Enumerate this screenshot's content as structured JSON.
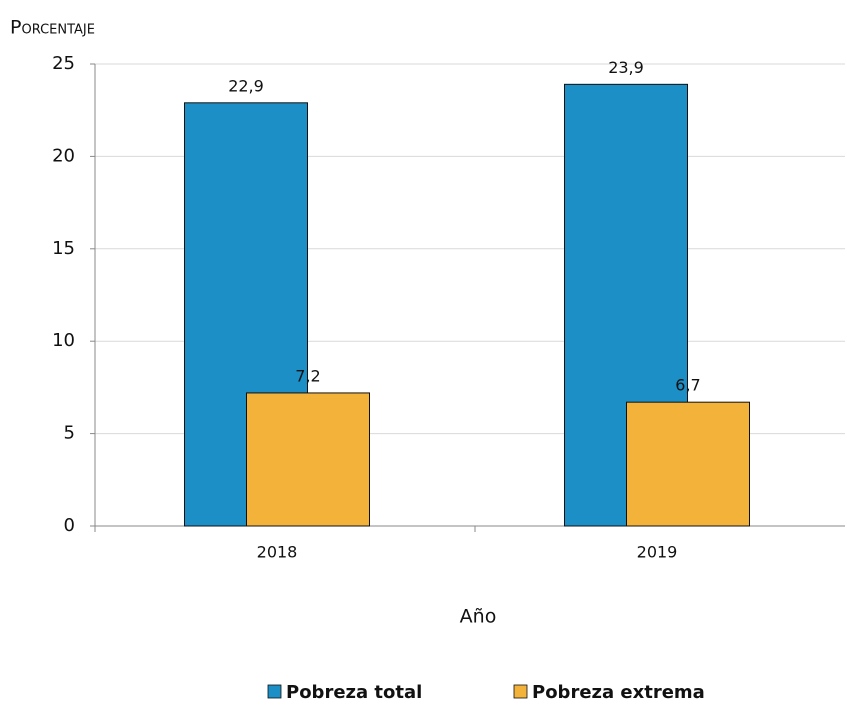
{
  "chart_data": {
    "type": "bar",
    "y_label": "Porcentaje",
    "x_label": "Año",
    "categories": [
      "2018",
      "2019"
    ],
    "series": [
      {
        "name": "Pobreza total",
        "color": "#1b8fc6",
        "values": [
          22.9,
          23.9
        ],
        "value_labels": [
          "22,9",
          "23,9"
        ]
      },
      {
        "name": "Pobreza extrema",
        "color": "#f3b23a",
        "values": [
          7.2,
          6.7
        ],
        "value_labels": [
          "7,2",
          "6,7"
        ]
      }
    ],
    "ylim": [
      0,
      25
    ],
    "yticks": [
      0,
      5,
      10,
      15,
      20,
      25
    ],
    "grid": true
  }
}
